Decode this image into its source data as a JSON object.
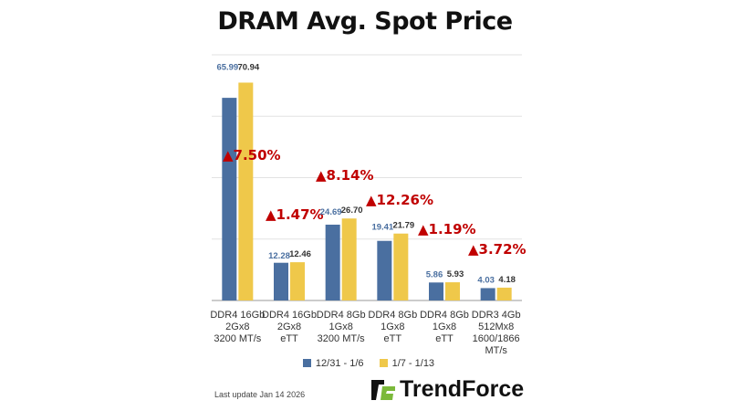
{
  "chart_data": {
    "type": "bar",
    "title": "DRAM Avg. Spot Price",
    "categories": [
      [
        "DDR4 16Gb",
        "2Gx8",
        "3200 MT/s"
      ],
      [
        "DDR4 16Gb",
        "2Gx8",
        "eTT"
      ],
      [
        "DDR4 8Gb",
        "1Gx8",
        "3200 MT/s"
      ],
      [
        "DDR4 8Gb",
        "1Gx8",
        "eTT"
      ],
      [
        "DDR4 8Gb",
        "1Gx8",
        "eTT"
      ],
      [
        "DDR3 4Gb",
        "512Mx8",
        "1600/1866",
        "MT/s"
      ]
    ],
    "series": [
      {
        "name": "12/31 - 1/6",
        "color": "#4a6fa0",
        "label_color": "#4a6fa0",
        "values": [
          65.99,
          12.28,
          24.69,
          19.41,
          5.86,
          4.03
        ]
      },
      {
        "name": "1/7 - 1/13",
        "color": "#efc84a",
        "label_color": "#333333",
        "values": [
          70.94,
          12.46,
          26.7,
          21.79,
          5.93,
          4.18
        ]
      }
    ],
    "annotations": [
      "▲7.50%",
      "▲1.47%",
      "▲8.14%",
      "▲12.26%",
      "▲1.19%",
      "▲3.72%"
    ],
    "annotation_color": "#c00000",
    "ylim": [
      0,
      80
    ],
    "grid": true,
    "legend": "bottom",
    "xlabel": "",
    "ylabel": ""
  },
  "footer": {
    "last_update": "Last update Jan 14  2026",
    "logo": "TrendForce"
  }
}
